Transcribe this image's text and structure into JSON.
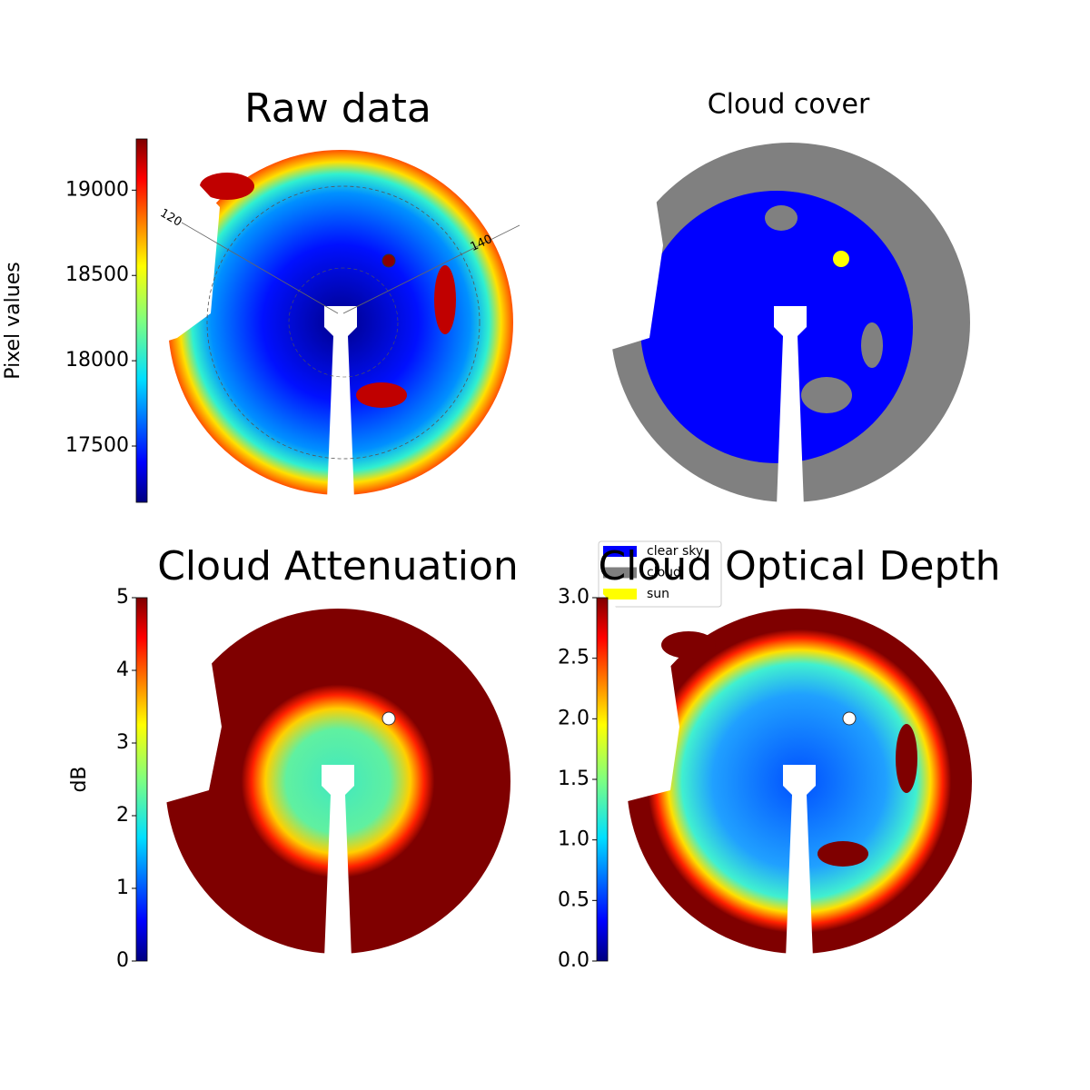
{
  "chart_data": [
    {
      "type": "image",
      "title": "Raw data",
      "colormap": "jet",
      "colorbar_label": "Pixel values",
      "clim": [
        17170,
        19300
      ],
      "cticks": [
        17500,
        18000,
        18500,
        19000
      ],
      "annotations": [
        "120",
        "140"
      ]
    },
    {
      "type": "image",
      "title": "Cloud cover",
      "series": [
        {
          "name": "clear sky",
          "color": "#0000ff"
        },
        {
          "name": "cloud",
          "color": "#808080"
        },
        {
          "name": "sun",
          "color": "#ffff00"
        }
      ]
    },
    {
      "type": "image",
      "title": "Cloud Attenuation",
      "colormap": "jet",
      "colorbar_label": "dB",
      "clim": [
        0,
        5
      ],
      "cticks": [
        0,
        1,
        2,
        3,
        4,
        5
      ]
    },
    {
      "type": "image",
      "title": "Cloud Optical Depth",
      "colormap": "jet",
      "clim": [
        0,
        3
      ],
      "cticks": [
        {
          "value": 0,
          "label": "0.0"
        },
        {
          "value": 0.5,
          "label": "0.5"
        },
        {
          "value": 1,
          "label": "1.0"
        },
        {
          "value": 1.5,
          "label": "1.5"
        },
        {
          "value": 2,
          "label": "2.0"
        },
        {
          "value": 2.5,
          "label": "2.5"
        },
        {
          "value": 3,
          "label": "3.0"
        }
      ]
    }
  ]
}
